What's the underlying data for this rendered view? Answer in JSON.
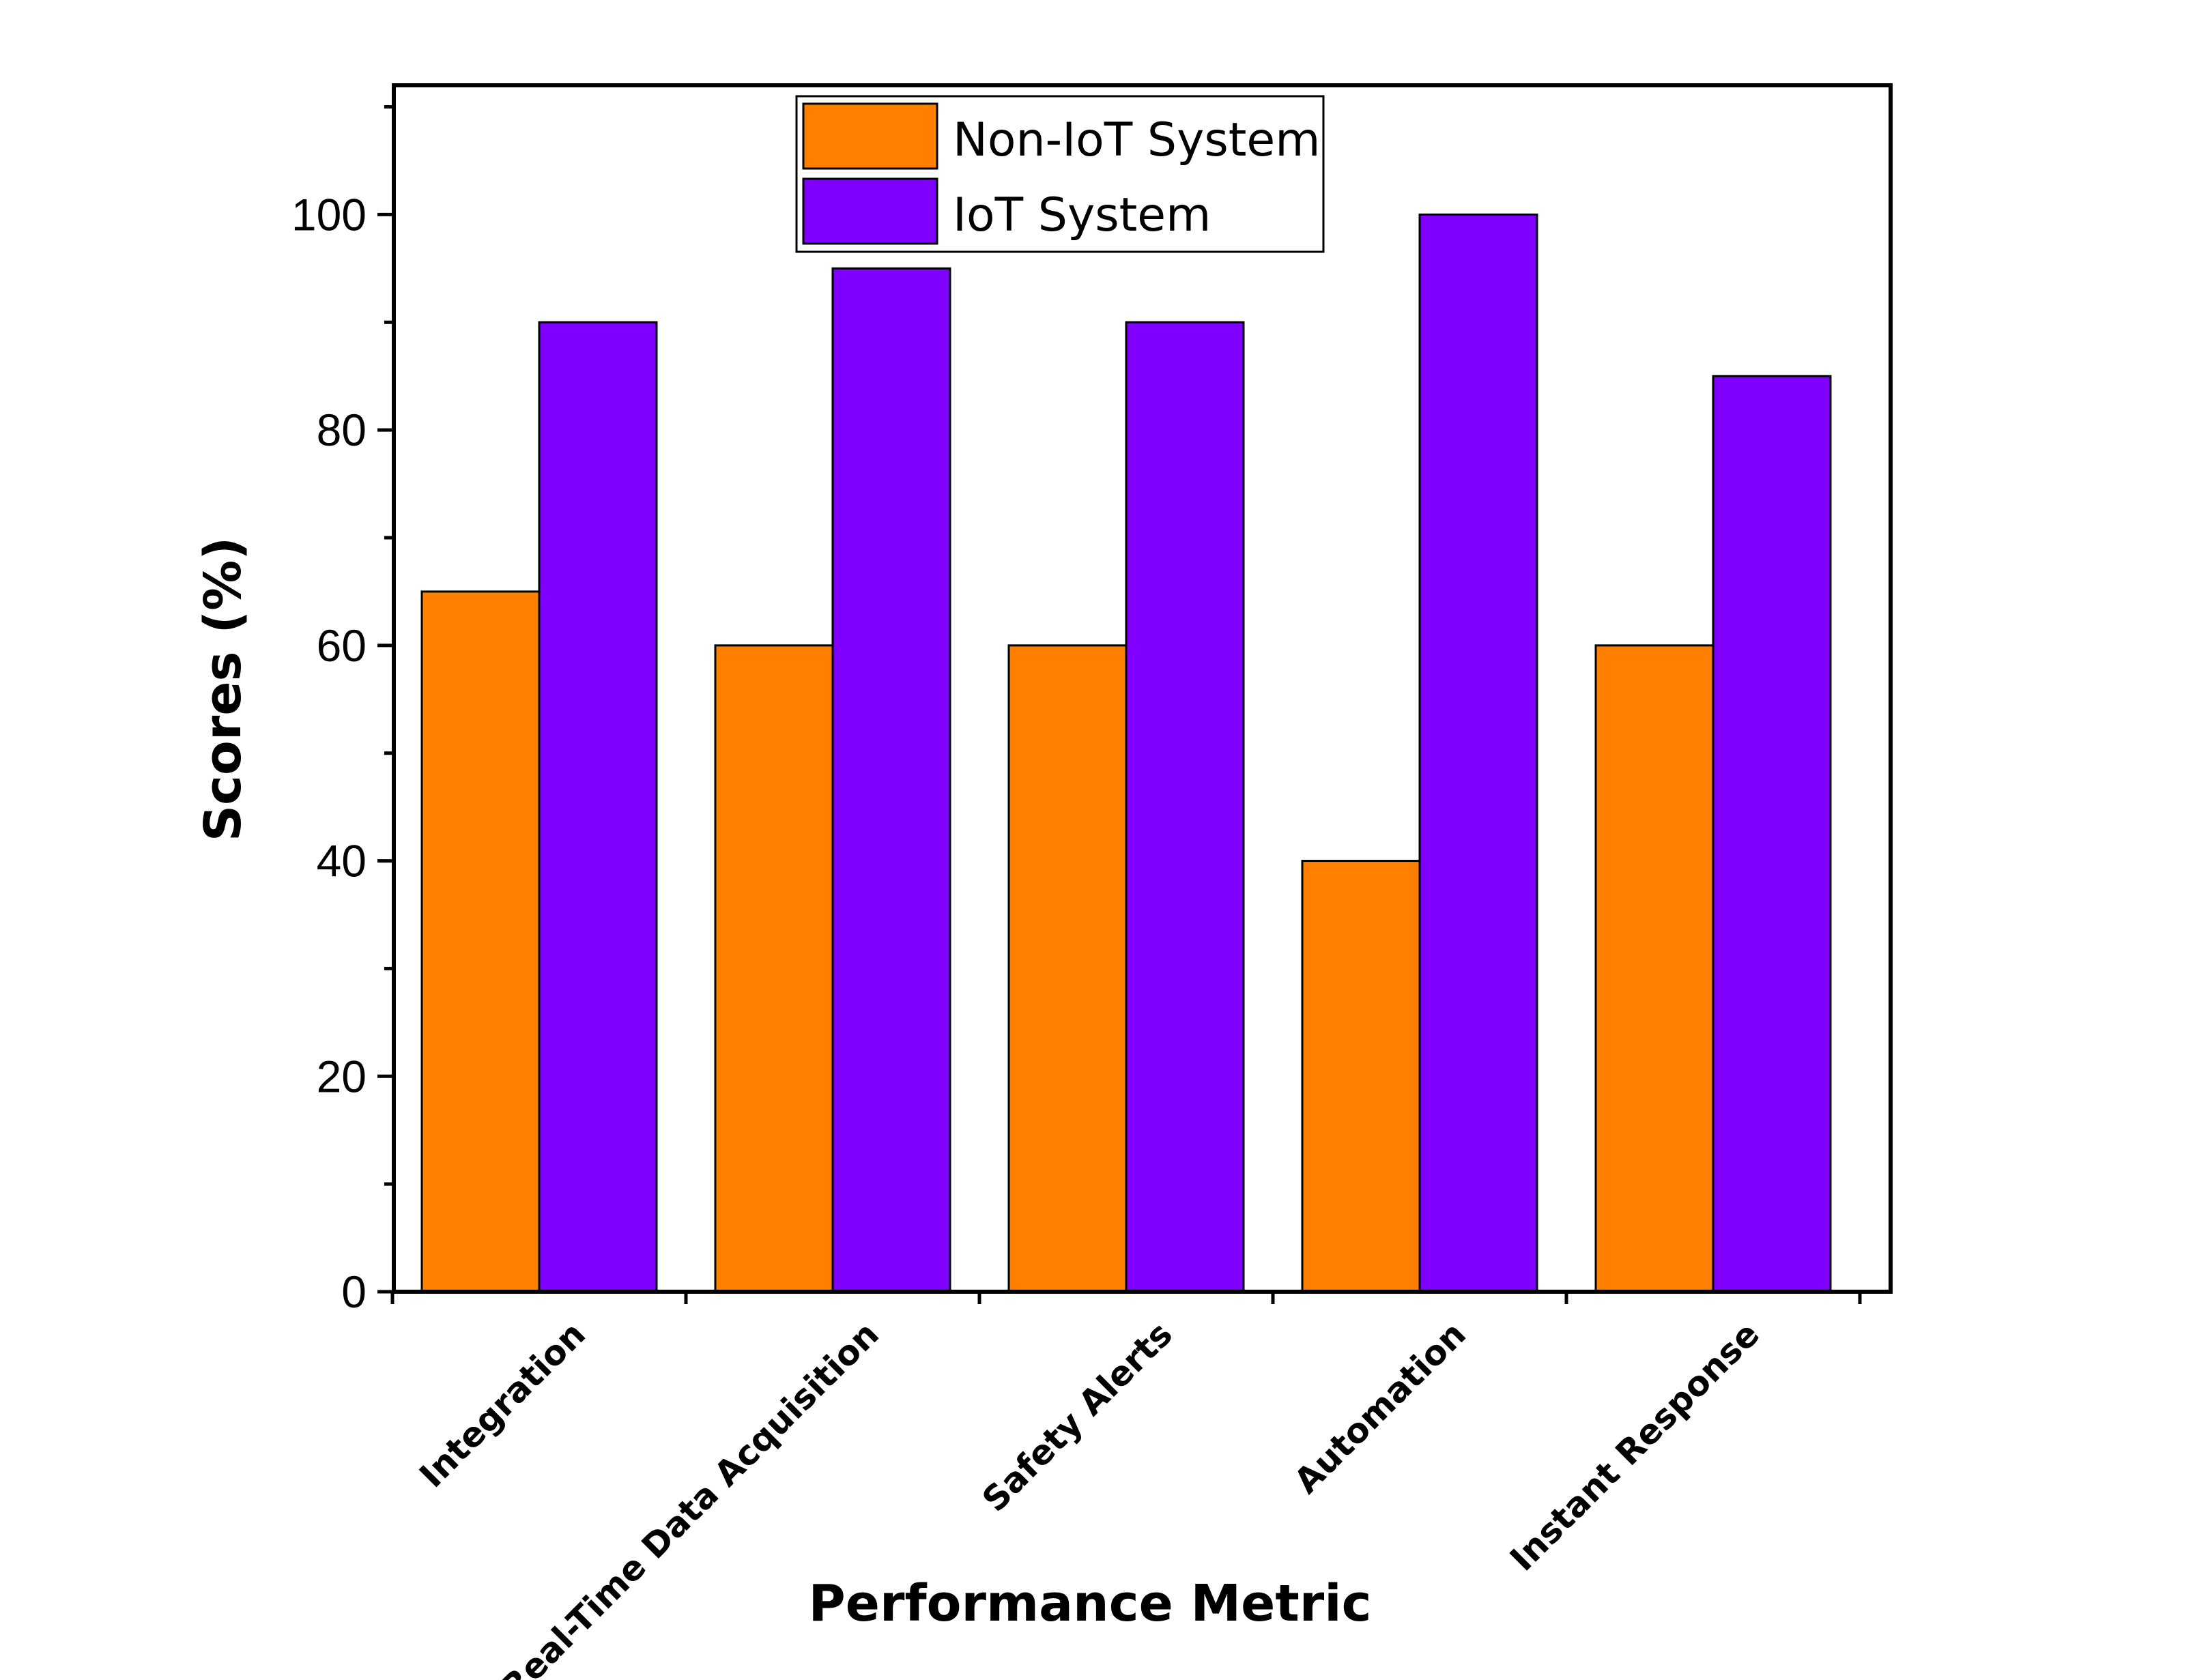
{
  "chart_data": {
    "type": "bar",
    "title": "",
    "xlabel": "Performance Metric",
    "ylabel": "Scores (%)",
    "ylim": [
      0,
      112
    ],
    "yticks": [
      0,
      20,
      40,
      60,
      80,
      100
    ],
    "categories": [
      "Integration",
      "Real-Time Data Acquisition",
      "Safety Alerts",
      "Automation",
      "Instant Response"
    ],
    "series": [
      {
        "name": "Non-IoT System",
        "color": "#FF8000",
        "values": [
          65,
          60,
          60,
          40,
          60
        ]
      },
      {
        "name": "IoT System",
        "color": "#8000FF",
        "values": [
          90,
          95,
          90,
          100,
          85
        ]
      }
    ],
    "legend_position": "top-center",
    "grid": false
  }
}
